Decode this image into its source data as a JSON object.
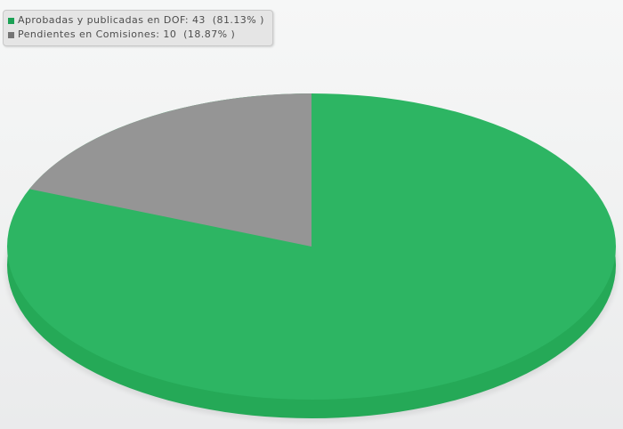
{
  "legend": {
    "items": [
      {
        "text": "Aprobadas y publicadas en DOF: 43  (81.13% )",
        "marker_color": "#1ca155"
      },
      {
        "text": "Pendientes en Comisiones: 10  (18.87% )",
        "marker_color": "#757575"
      }
    ]
  },
  "chart_data": {
    "type": "pie",
    "style": "3d",
    "title": "",
    "slices": [
      {
        "label": "Aprobadas y publicadas en DOF",
        "value": 43,
        "pct": 81.13,
        "color": "#2db563"
      },
      {
        "label": "Pendientes en Comisiones",
        "value": 10,
        "pct": 18.87,
        "color": "#959595"
      }
    ],
    "depth_color": "#25a957",
    "shadow_color": "#000000",
    "start_angle_deg": 90,
    "minor_slice_sweep": "counterclockwise-from-12-oclock",
    "legend_position": "top-left",
    "data_labels": "none"
  }
}
